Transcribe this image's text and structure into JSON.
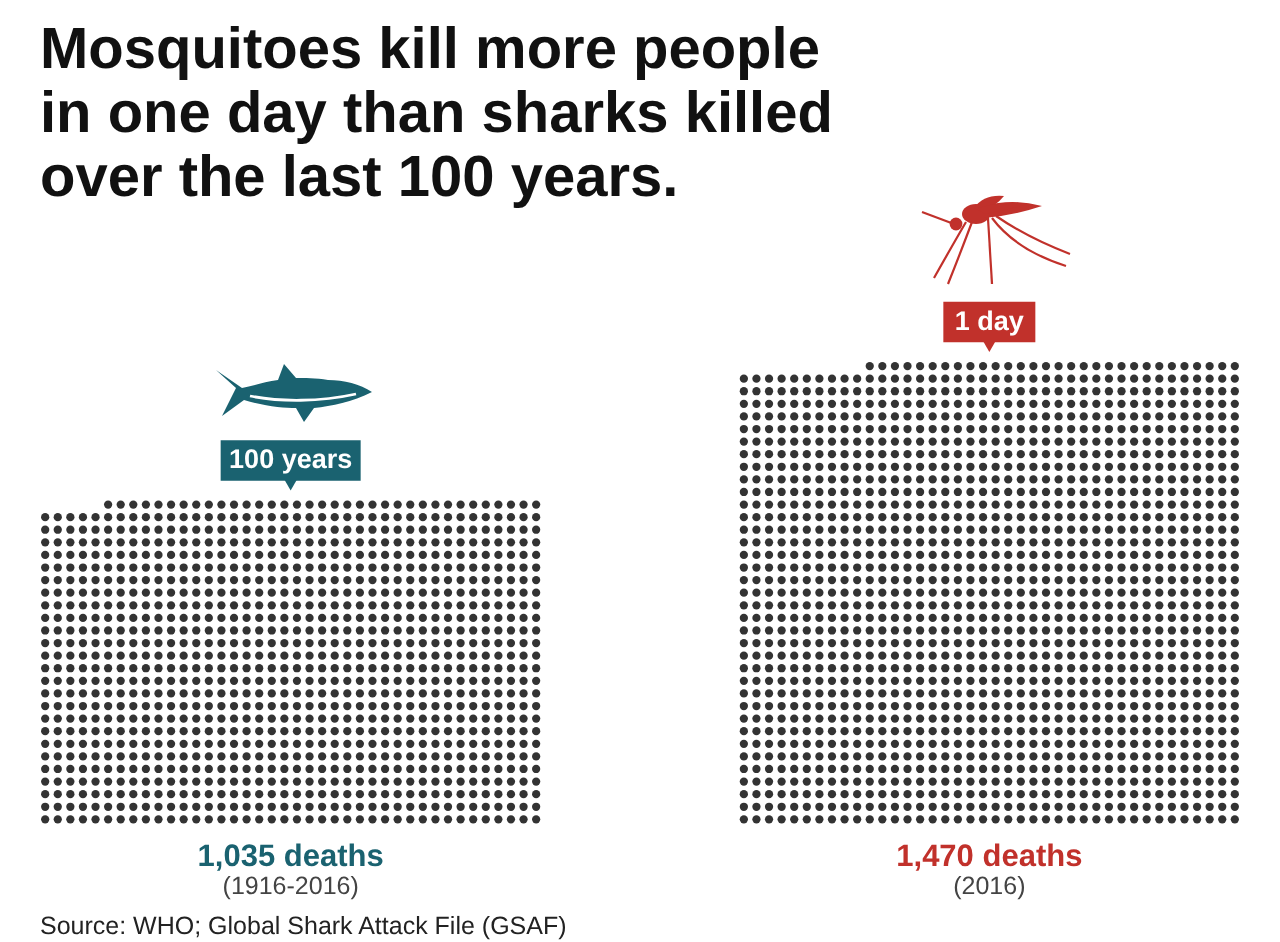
{
  "chart_data": {
    "type": "other",
    "title": "Mosquitoes kill more people in one day than sharks killed over the last 100 years.",
    "categories": [
      "100 years",
      "1 day"
    ],
    "values": [
      1035,
      1470
    ],
    "value_labels": [
      "1,035 deaths",
      "1,470 deaths"
    ],
    "colors": [
      "#1a6270",
      "#c1312b"
    ],
    "annotations": [
      {
        "text": "(1916-2016)",
        "x": "100 years"
      },
      {
        "text": "(2016)",
        "x": "1 day"
      },
      "Source: WHO; Global Shark Attack File (GSAF)"
    ]
  }
}
